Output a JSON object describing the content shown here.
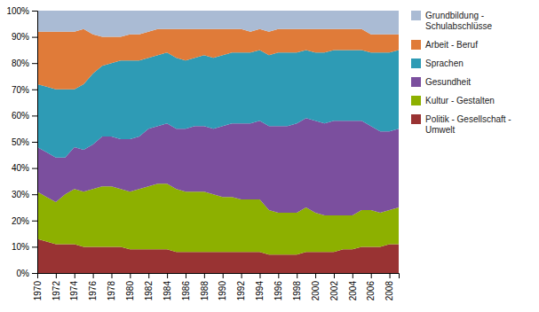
{
  "chart_data": {
    "type": "area",
    "stacked": true,
    "grid": false,
    "legend": "right",
    "x": [
      1970,
      1971,
      1972,
      1973,
      1974,
      1975,
      1976,
      1977,
      1978,
      1979,
      1980,
      1981,
      1982,
      1983,
      1984,
      1985,
      1986,
      1987,
      1988,
      1989,
      1990,
      1991,
      1992,
      1993,
      1994,
      1995,
      1996,
      1997,
      1998,
      1999,
      2000,
      2001,
      2002,
      2003,
      2004,
      2005,
      2006,
      2007,
      2008,
      2009
    ],
    "xlim": [
      1970,
      2009
    ],
    "xticks": [
      1970,
      1972,
      1974,
      1976,
      1978,
      1980,
      1982,
      1984,
      1986,
      1988,
      1990,
      1992,
      1994,
      1996,
      1998,
      2000,
      2002,
      2004,
      2006,
      2008
    ],
    "ylim": [
      0,
      100
    ],
    "yticks": [
      {
        "value": 0,
        "label": "0%"
      },
      {
        "value": 10,
        "label": "10%"
      },
      {
        "value": 20,
        "label": "20%"
      },
      {
        "value": 30,
        "label": "30%"
      },
      {
        "value": 40,
        "label": "40%"
      },
      {
        "value": 50,
        "label": "50%"
      },
      {
        "value": 60,
        "label": "60%"
      },
      {
        "value": 70,
        "label": "70%"
      },
      {
        "value": 80,
        "label": "80%"
      },
      {
        "value": 90,
        "label": "90%"
      },
      {
        "value": 100,
        "label": "100%"
      }
    ],
    "series": [
      {
        "name": "Politik - Gesellschaft -\nUmwelt",
        "color": "#993333",
        "values": [
          13,
          12,
          11,
          11,
          11,
          10,
          10,
          10,
          10,
          10,
          9,
          9,
          9,
          9,
          9,
          8,
          8,
          8,
          8,
          8,
          8,
          8,
          8,
          8,
          8,
          7,
          7,
          7,
          7,
          8,
          8,
          8,
          8,
          9,
          9,
          10,
          10,
          10,
          11,
          11
        ]
      },
      {
        "name": "Kultur - Gestalten",
        "color": "#8DB000",
        "values": [
          18,
          17,
          16,
          19,
          21,
          21,
          22,
          23,
          23,
          22,
          22,
          23,
          24,
          25,
          25,
          24,
          23,
          23,
          23,
          22,
          21,
          21,
          20,
          20,
          20,
          17,
          16,
          16,
          16,
          17,
          15,
          14,
          14,
          13,
          13,
          14,
          14,
          13,
          13,
          14
        ]
      },
      {
        "name": "Gesundheit",
        "color": "#7B4F9E",
        "values": [
          17,
          17,
          17,
          14,
          16,
          16,
          17,
          19,
          19,
          19,
          20,
          20,
          22,
          22,
          23,
          23,
          24,
          25,
          25,
          25,
          27,
          28,
          29,
          29,
          30,
          32,
          33,
          33,
          34,
          34,
          35,
          35,
          36,
          36,
          36,
          34,
          32,
          31,
          30,
          30
        ]
      },
      {
        "name": "Sprachen",
        "color": "#2E9BB5",
        "values": [
          24,
          25,
          26,
          26,
          22,
          25,
          27,
          27,
          28,
          30,
          30,
          29,
          27,
          27,
          27,
          27,
          26,
          26,
          27,
          27,
          27,
          27,
          27,
          27,
          27,
          27,
          28,
          28,
          27,
          26,
          26,
          27,
          27,
          27,
          27,
          27,
          28,
          30,
          30,
          30
        ]
      },
      {
        "name": "Arbeit - Beruf",
        "color": "#E07B39",
        "values": [
          20,
          21,
          22,
          22,
          22,
          21,
          15,
          11,
          10,
          9,
          10,
          10,
          10,
          10,
          9,
          11,
          12,
          11,
          10,
          11,
          10,
          9,
          9,
          8,
          8,
          9,
          9,
          9,
          9,
          8,
          9,
          9,
          8,
          8,
          8,
          8,
          7,
          7,
          7,
          6
        ]
      },
      {
        "name": "Grundbildung -\nSchulabschlüsse",
        "color": "#AABBD4",
        "values": [
          8,
          8,
          8,
          8,
          8,
          7,
          9,
          10,
          10,
          10,
          9,
          9,
          8,
          7,
          7,
          7,
          7,
          7,
          7,
          7,
          7,
          7,
          7,
          8,
          7,
          8,
          7,
          7,
          7,
          7,
          7,
          7,
          7,
          7,
          7,
          7,
          9,
          9,
          9,
          9
        ]
      }
    ]
  }
}
